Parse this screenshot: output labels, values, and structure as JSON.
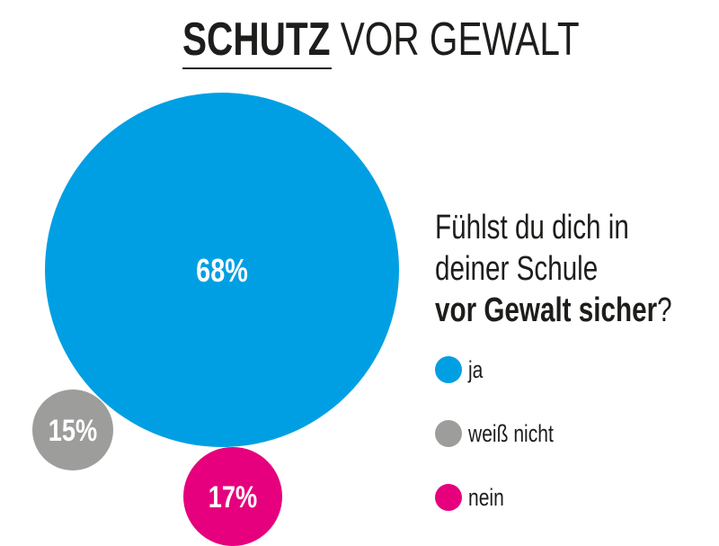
{
  "header": {
    "title_bold": "SCHUTZ",
    "title_regular": "VOR GEWALT"
  },
  "question": {
    "line1": "Fühlst du dich in",
    "line2": "deiner Schule",
    "line3_bold": "vor Gewalt sicher",
    "line3_end": "?"
  },
  "chart_data": {
    "type": "bubble",
    "title": "SCHUTZ VOR GEWALT",
    "categories": [
      "ja",
      "weiß nicht",
      "nein"
    ],
    "values": [
      68,
      15,
      17
    ],
    "labels": [
      "68%",
      "15%",
      "17%"
    ],
    "unit": "%",
    "colors": [
      "#009fe3",
      "#9d9d9c",
      "#e6007e"
    ],
    "legend_position": "right"
  }
}
